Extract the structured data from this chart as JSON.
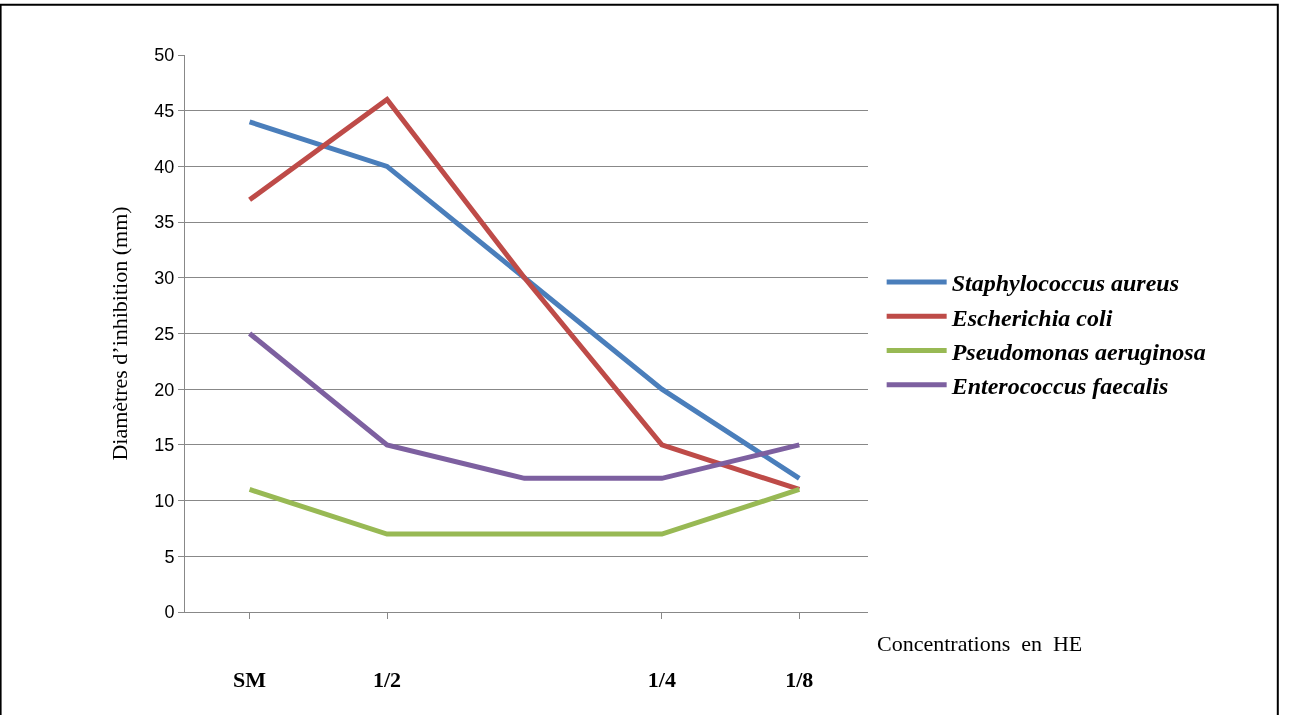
{
  "chart_data": {
    "type": "line",
    "ylabel": "Diamètres d’inhibition (mm)",
    "xlabel": "Concentrations  en  HE",
    "categories": [
      "SM",
      "1/2",
      null,
      "1/4",
      "1/8"
    ],
    "series": [
      {
        "name": "Staphylococcus aureus",
        "color": "#4a7ebb",
        "values": [
          44,
          40,
          30,
          20,
          12
        ]
      },
      {
        "name": "Escherichia coli",
        "color": "#be4b48",
        "values": [
          37,
          46,
          30,
          15,
          11
        ]
      },
      {
        "name": "Pseudomonas aeruginosa",
        "color": "#98b954",
        "values": [
          11,
          7,
          7,
          7,
          11
        ]
      },
      {
        "name": "Enterococcus faecalis",
        "color": "#7d60a0",
        "values": [
          25,
          15,
          12,
          12,
          15
        ]
      }
    ],
    "ylim": [
      0,
      50
    ],
    "yticks": [
      0,
      5,
      10,
      15,
      20,
      25,
      30,
      35,
      40,
      45,
      50
    ],
    "grid": "y",
    "legend": "right",
    "marker": "none",
    "line_style": "solid"
  }
}
